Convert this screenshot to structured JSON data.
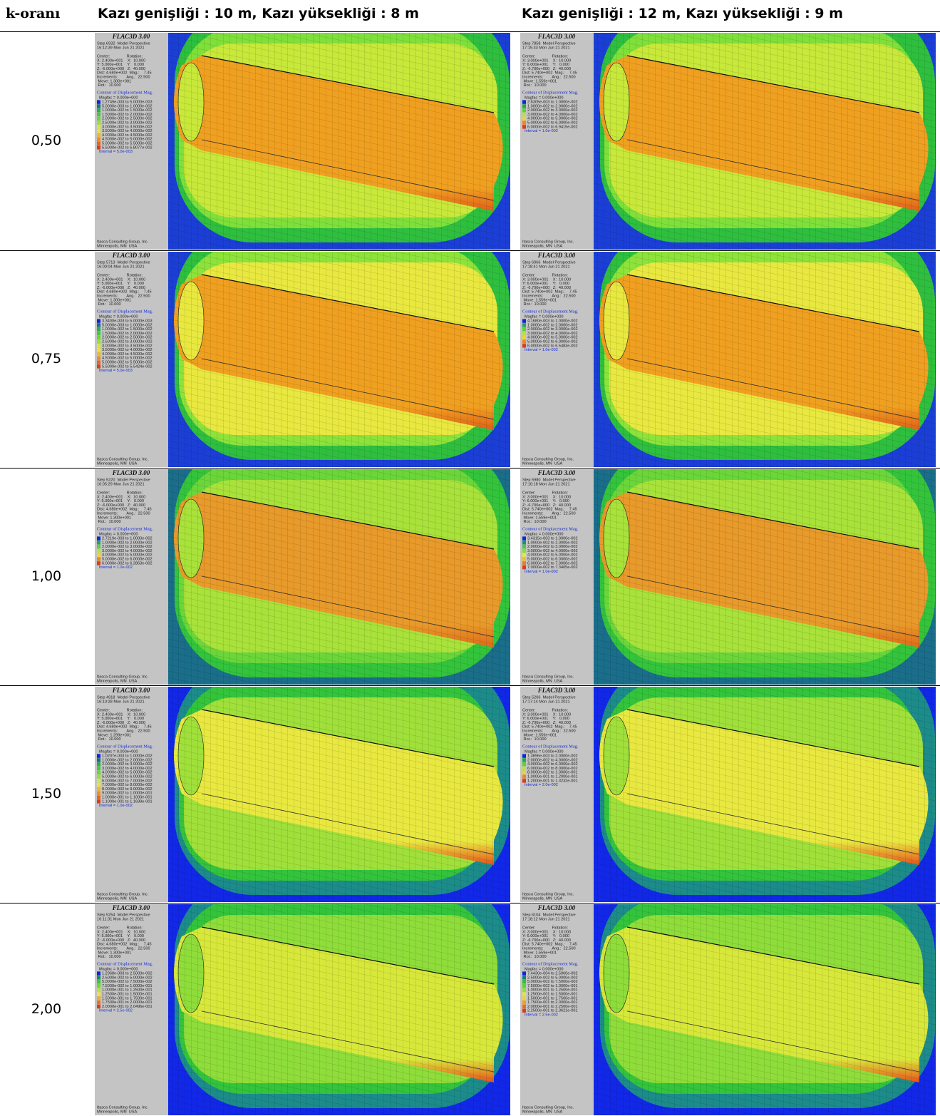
{
  "header": {
    "k_label": "k-oranı",
    "columns": [
      "Kazı genişliği : 10 m, Kazı yüksekliği : 8 m",
      "Kazı genişliği : 12 m, Kazı yüksekliği : 9 m"
    ]
  },
  "rows": [
    {
      "k": "0,50",
      "panels": [
        {
          "title": "FLAC3D 3.00",
          "step": "Step 6932  Model Perspective",
          "time": "16:12:39 Mon Jun 21 2021",
          "view": [
            "Center:               Rotation:",
            "X: 2.400e+001    X:  10.000",
            "Y: 5.000e+001    Y:   0.000",
            "Z: -6.000e+000   Z:  40.000",
            "Dist: 4.680e+002  Mag.:    7.45",
            "Increments:        Ang.:  22.500",
            " Move: 1.300e+001",
            " Rot.:  10.000"
          ],
          "legend_title": "Contour of Displacement Mag.",
          "magfac": "Magfac = 0.000e+000",
          "legend": [
            "1.2749e-003 to 5.0000e-003",
            "5.0000e-003 to 1.0000e-002",
            "1.0000e-002 to 1.5000e-002",
            "1.5000e-002 to 2.0000e-002",
            "2.0000e-002 to 2.5000e-002",
            "2.5000e-002 to 3.0000e-002",
            "3.0000e-002 to 3.5000e-002",
            "3.5000e-002 to 4.0000e-002",
            "4.0000e-002 to 4.5000e-002",
            "4.5000e-002 to 5.0000e-002",
            "5.0000e-002 to 5.5000e-002",
            "5.5000e-002 to 5.8077e-002"
          ],
          "interval": "Interval = 5.0e-003",
          "footer": [
            "Itasca Consulting Group, Inc.",
            "Minneapolis, MN  USA"
          ]
        },
        {
          "title": "FLAC3D 3.00",
          "step": "Step 7858  Model Perspective",
          "time": "17:15:33 Mon Jun 21 2021",
          "view": [
            "Center:               Rotation:",
            "X: 3.000e+001    X:  10.000",
            "Y: 6.000e+001    Y:   0.000",
            "Z: -6.700e+000   Z:  40.000",
            "Dist: 5.740e+002  Mag.:    7.45",
            "Increments:        Ang.:  22.500",
            " Move: 1.559e+001",
            " Rot.:  10.000"
          ],
          "legend_title": "Contour of Displacement Mag.",
          "magfac": "Magfac = 0.000e+000",
          "legend": [
            "2.6305e-003 to 1.0000e-002",
            "1.0000e-002 to 2.0000e-002",
            "2.0000e-002 to 3.0000e-002",
            "3.0000e-002 to 4.0000e-002",
            "4.0000e-002 to 5.0000e-002",
            "5.0000e-002 to 6.0000e-002",
            "6.0000e-002 to 6.9415e-002"
          ],
          "interval": "Interval = 1.0e-002",
          "footer": [
            "Itasca Consulting Group, Inc.",
            "Minneapolis, MN  USA"
          ]
        }
      ]
    },
    {
      "k": "0,75",
      "panels": [
        {
          "title": "FLAC3D 3.00",
          "step": "Step 5713  Model Perspective",
          "time": "16:00:04 Mon Jun 21 2021",
          "view": [
            "Center:               Rotation:",
            "X: 2.400e+001    X:  10.000",
            "Y: 5.000e+001    Y:   0.000",
            "Z: -6.000e+000   Z:  40.000",
            "Dist: 4.680e+002  Mag.:    7.45",
            "Increments:        Ang.:  22.500",
            " Move: 1.300e+001",
            " Rot.:  10.000"
          ],
          "legend_title": "Contour of Displacement Mag.",
          "magfac": "Magfac = 0.000e+000",
          "legend": [
            "3.3400e-003 to 5.0000e-003",
            "5.0000e-003 to 1.0000e-002",
            "1.0000e-002 to 1.5000e-002",
            "1.5000e-002 to 2.0000e-002",
            "2.0000e-002 to 2.5000e-002",
            "2.5000e-002 to 3.0000e-002",
            "3.0000e-002 to 3.5000e-002",
            "3.5000e-002 to 4.0000e-002",
            "4.0000e-002 to 4.5000e-002",
            "4.5000e-002 to 5.0000e-002",
            "5.0000e-002 to 5.5000e-002",
            "5.5000e-002 to 5.5424e-002"
          ],
          "interval": "Interval = 5.0e-003",
          "footer": [
            "Itasca Consulting Group, Inc.",
            "Minneapolis, MN  USA"
          ]
        },
        {
          "title": "FLAC3D 3.00",
          "step": "Step 6066  Model Perspective",
          "time": "17:18:41 Mon Jun 21 2021",
          "view": [
            "Center:               Rotation:",
            "X: 3.000e+001    X:  10.000",
            "Y: 6.000e+001    Y:   0.000",
            "Z: -6.700e+000   Z:  40.000",
            "Dist: 5.740e+002  Mag.:    7.45",
            "Increments:        Ang.:  22.500",
            " Move: 1.559e+001",
            " Rot.:  10.000"
          ],
          "legend_title": "Contour of Displacement Mag.",
          "magfac": "Magfac = 0.000e+000",
          "legend": [
            "4.1680e-003 to 1.0000e-002",
            "1.0000e-002 to 2.0000e-002",
            "2.0000e-002 to 3.0000e-002",
            "3.0000e-002 to 4.0000e-002",
            "4.0000e-002 to 5.0000e-002",
            "5.0000e-002 to 6.0000e-002",
            "6.0000e-002 to 6.5483e-002"
          ],
          "interval": "Interval = 1.0e-002",
          "footer": [
            "Itasca Consulting Group, Inc.",
            "Minneapolis, MN  USA"
          ]
        }
      ]
    },
    {
      "k": "1,00",
      "panels": [
        {
          "title": "FLAC3D 3.00",
          "step": "Step 5220  Model Perspective",
          "time": "16:05:29 Mon Jun 21 2021",
          "view": [
            "Center:               Rotation:",
            "X: 2.400e+001    X:  10.000",
            "Y: 5.000e+001    Y:   0.000",
            "Z: -6.000e+000   Z:  40.000",
            "Dist: 4.680e+002  Mag.:    7.45",
            "Increments:        Ang.:  22.500",
            " Move: 1.300e+001",
            " Rot.:  10.000"
          ],
          "legend_title": "Contour of Displacement Mag.",
          "magfac": "Magfac = 0.000e+000",
          "legend": [
            "2.7219e-003 to 1.0000e-002",
            "1.0000e-002 to 2.0000e-002",
            "2.0000e-002 to 3.0000e-002",
            "3.0000e-002 to 4.0000e-002",
            "4.0000e-002 to 5.0000e-002",
            "5.0000e-002 to 6.0000e-002",
            "6.0000e-002 to 6.2863e-002"
          ],
          "interval": "Interval = 1.0e-002",
          "footer": [
            "Itasca Consulting Group, Inc.",
            "Minneapolis, MN  USA"
          ]
        },
        {
          "title": "FLAC3D 3.00",
          "step": "Step 5980  Model Perspective",
          "time": "17:16:18 Mon Jun 21 2021",
          "view": [
            "Center:               Rotation:",
            "X: 3.000e+001    X:  10.000",
            "Y: 6.000e+001    Y:   0.000",
            "Z: -6.700e+000   Z:  40.000",
            "Dist: 5.740e+002  Mag.:    7.45",
            "Increments:        Ang.:  22.500",
            " Move: 1.559e+001",
            " Rot.:  10.000"
          ],
          "legend_title": "Contour of Displacement Mag.",
          "magfac": "Magfac = 0.000e+000",
          "legend": [
            "3.4315e-003 to 1.0000e-002",
            "1.0000e-002 to 2.0000e-002",
            "2.0000e-002 to 3.0000e-002",
            "3.0000e-002 to 4.0000e-002",
            "4.0000e-002 to 5.0000e-002",
            "5.0000e-002 to 6.0000e-002",
            "6.0000e-002 to 7.0000e-002",
            "7.0000e-002 to 7.3405e-002"
          ],
          "interval": "Interval = 1.0e-002",
          "footer": [
            "Itasca Consulting Group, Inc.",
            "Minneapolis, MN  USA"
          ]
        }
      ]
    },
    {
      "k": "1,50",
      "panels": [
        {
          "title": "FLAC3D 3.00",
          "step": "Step 4918  Model Perspective",
          "time": "16:10:28 Mon Jun 21 2021",
          "view": [
            "Center:               Rotation:",
            "X: 2.400e+001    X:  10.000",
            "Y: 5.000e+001    Y:   0.000",
            "Z: -6.000e+000   Z:  40.000",
            "Dist: 4.680e+002  Mag.:    7.45",
            "Increments:        Ang.:  22.500",
            " Move: 1.299e+001",
            " Rot.:  10.000"
          ],
          "legend_title": "Contour of Displacement Mag.",
          "magfac": "Magfac = 0.000e+000",
          "legend": [
            "1.0207e-003 to 1.0000e-002",
            "1.0000e-002 to 2.0000e-002",
            "2.0000e-002 to 3.0000e-002",
            "3.0000e-002 to 4.0000e-002",
            "4.0000e-002 to 5.0000e-002",
            "5.0000e-002 to 6.0000e-002",
            "6.0000e-002 to 7.0000e-002",
            "7.0000e-002 to 8.0000e-002",
            "8.0000e-002 to 9.0000e-002",
            "9.0000e-002 to 1.0000e-001",
            "1.0000e-001 to 1.1000e-001",
            "1.1000e-001 to 1.1699e-001"
          ],
          "interval": "Interval = 1.0e-002",
          "footer": [
            "Itasca Consulting Group, Inc.",
            "Minneapolis, MN  USA"
          ]
        },
        {
          "title": "FLAC3D 3.00",
          "step": "Step 5206  Model Perspective",
          "time": "17:17:14 Mon Jun 21 2021",
          "view": [
            "Center:               Rotation:",
            "X: 3.000e+001    X:  10.000",
            "Y: 6.000e+001    Y:   0.000",
            "Z: -6.700e+000   Z:  40.000",
            "Dist: 5.740e+002  Mag.:    7.45",
            "Increments:        Ang.:  22.500",
            " Move: 1.559e+001",
            " Rot.:  10.000"
          ],
          "legend_title": "Contour of Displacement Mag.",
          "magfac": "Magfac = 0.000e+000",
          "legend": [
            "1.3896e-003 to 2.0000e-002",
            "2.0000e-002 to 4.0000e-002",
            "4.0000e-002 to 6.0000e-002",
            "6.0000e-002 to 8.0000e-002",
            "8.0000e-002 to 1.0000e-001",
            "1.0000e-001 to 1.2000e-001",
            "1.2000e-001 to 1.3232e-001"
          ],
          "interval": "Interval = 2.0e-002",
          "footer": [
            "Itasca Consulting Group, Inc.",
            "Minneapolis, MN  USA"
          ]
        }
      ]
    },
    {
      "k": "2,00",
      "panels": [
        {
          "title": "FLAC3D 3.00",
          "step": "Step 5254  Model Perspective",
          "time": "16:11:31 Mon Jun 21 2021",
          "view": [
            "Center:               Rotation:",
            "X: 2.400e+001    X:  10.000",
            "Y: 5.000e+001    Y:   0.000",
            "Z: -6.000e+000   Z:  40.000",
            "Dist: 4.680e+002  Mag.:    7.45",
            "Increments:        Ang.:  22.500",
            " Move: 1.300e+001",
            " Rot.:  10.000"
          ],
          "legend_title": "Contour of Displacement Mag.",
          "magfac": "Magfac = 0.000e+000",
          "legend": [
            "1.2968e-003 to 2.5000e-002",
            "2.5000e-002 to 5.0000e-002",
            "5.0000e-002 to 7.5000e-002",
            "7.5000e-002 to 1.0000e-001",
            "1.0000e-001 to 1.2500e-001",
            "1.2500e-001 to 1.5000e-001",
            "1.5000e-001 to 1.7500e-001",
            "1.7500e-001 to 2.0000e-001",
            "2.0000e-001 to 2.0496e-001"
          ],
          "interval": "Interval = 2.5e-002",
          "footer": [
            "Itasca Consulting Group, Inc.",
            "Minneapolis, MN  USA"
          ]
        },
        {
          "title": "FLAC3D 3.00",
          "step": "Step 6104  Model Perspective",
          "time": "17:18:12 Mon Jun 21 2021",
          "view": [
            "Center:               Rotation:",
            "X: 3.000e+001    X:  10.000",
            "Y: 6.000e+001    Y:   0.000",
            "Z: -6.700e+000   Z:  40.000",
            "Dist: 5.740e+002  Mag.:    7.45",
            "Increments:        Ang.:  22.500",
            " Move: 1.559e+001",
            " Rot.:  10.000"
          ],
          "legend_title": "Contour of Displacement Mag.",
          "magfac": "Magfac = 0.000e+000",
          "legend": [
            "7.4430e-004 to 2.5000e-002",
            "2.5000e-002 to 5.0000e-002",
            "5.0000e-002 to 7.5000e-002",
            "7.5000e-002 to 1.0000e-001",
            "1.0000e-001 to 1.2500e-001",
            "1.2500e-001 to 1.5000e-001",
            "1.5000e-001 to 1.7500e-001",
            "1.7500e-001 to 2.0000e-001",
            "2.0000e-001 to 2.2500e-001",
            "2.2500e-001 to 2.3621e-001"
          ],
          "interval": "Interval = 2.5e-002",
          "footer": [
            "Itasca Consulting Group, Inc.",
            "Minneapolis, MN  USA"
          ]
        }
      ]
    }
  ]
}
